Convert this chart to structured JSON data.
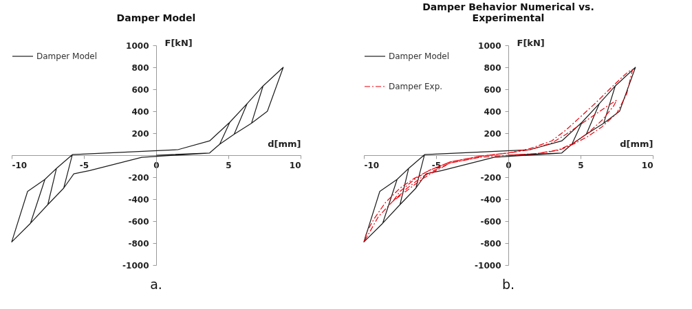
{
  "chart_data": [
    {
      "type": "line",
      "title": "Damper Model",
      "xlabel": "d[mm]",
      "ylabel": "F[kN]",
      "xlim": [
        -10,
        10
      ],
      "ylim": [
        -1000,
        1000
      ],
      "xticks": [
        -10,
        -5,
        0,
        5,
        10
      ],
      "yticks": [
        -1000,
        -800,
        -600,
        -400,
        -200,
        {
          "value": 0,
          "label": null
        },
        200,
        400,
        600,
        800,
        1000
      ],
      "legend": "top left",
      "annotations": [
        "a."
      ],
      "series": [
        {
          "name": "Damper Model",
          "color": "#1a1a1a",
          "line_style": "solid",
          "x": [
            0,
            3.7,
            4.4,
            5.1,
            3.7,
            1.5,
            -5.8,
            -6.4,
            -5.7,
            -4.6,
            -1,
            3.7,
            4.4,
            5.4,
            6.3,
            5.1,
            3.7,
            1.5,
            -5.8,
            -6.9,
            -7.5,
            -6.4,
            -5.7,
            -4.6,
            -1,
            3.7,
            4.4,
            5.4,
            6.6,
            7.4,
            6.3,
            5.1,
            3.7,
            1.5,
            -5.8,
            -6.9,
            -7.7,
            -8.7,
            -7.5,
            -6.4,
            -5.7,
            -4.6,
            -1,
            3.7,
            4.4,
            5.4,
            6.6,
            7.7,
            8.8,
            7.4,
            6.3,
            5.1,
            3.7,
            1.5,
            -5.8,
            -6.9,
            -7.7,
            -8.9,
            -10,
            -8.7,
            -7.5,
            -6.4,
            -5.7,
            -4.6,
            -1
          ],
          "values": [
            0,
            20,
            100,
            300,
            130,
            50,
            5,
            -300,
            -170,
            -140,
            -20,
            20,
            100,
            190,
            470,
            300,
            130,
            50,
            5,
            -120,
            -450,
            -300,
            -170,
            -140,
            -20,
            20,
            100,
            190,
            290,
            630,
            470,
            300,
            130,
            50,
            5,
            -120,
            -220,
            -620,
            -450,
            -300,
            -170,
            -140,
            -20,
            20,
            100,
            190,
            290,
            400,
            800,
            630,
            470,
            300,
            130,
            50,
            5,
            -120,
            -220,
            -330,
            -790,
            -620,
            -450,
            -300,
            -170,
            -140,
            -20
          ]
        }
      ]
    },
    {
      "type": "line",
      "title": "Damper Behavior Numerical vs. Experimental",
      "xlabel": "d[mm]",
      "ylabel": "F[kN]",
      "xlim": [
        -10,
        10
      ],
      "ylim": [
        -1000,
        1000
      ],
      "xticks": [
        -10,
        -5,
        0,
        5,
        10
      ],
      "yticks": [
        -1000,
        -800,
        -600,
        -400,
        -200,
        {
          "value": 0,
          "label": null
        },
        200,
        400,
        600,
        800,
        1000
      ],
      "legend": "top left",
      "annotations": [
        "b."
      ],
      "series": [
        {
          "name": "Damper Model",
          "color": "#1a1a1a",
          "line_style": "solid",
          "x": [
            0,
            3.7,
            4.4,
            5.1,
            3.7,
            1.5,
            -5.8,
            -6.4,
            -5.7,
            -4.6,
            -1,
            3.7,
            4.4,
            5.4,
            6.3,
            5.1,
            3.7,
            1.5,
            -5.8,
            -6.9,
            -7.5,
            -6.4,
            -5.7,
            -4.6,
            -1,
            3.7,
            4.4,
            5.4,
            6.6,
            7.4,
            6.3,
            5.1,
            3.7,
            1.5,
            -5.8,
            -6.9,
            -7.7,
            -8.7,
            -7.5,
            -6.4,
            -5.7,
            -4.6,
            -1,
            3.7,
            4.4,
            5.4,
            6.6,
            7.7,
            8.8,
            7.4,
            6.3,
            5.1,
            3.7,
            1.5,
            -5.8,
            -6.9,
            -7.7,
            -8.9,
            -10,
            -8.7,
            -7.5,
            -6.4,
            -5.7,
            -4.6,
            -1
          ],
          "values": [
            0,
            20,
            100,
            300,
            130,
            50,
            5,
            -300,
            -170,
            -140,
            -20,
            20,
            100,
            190,
            470,
            300,
            130,
            50,
            5,
            -120,
            -450,
            -300,
            -170,
            -140,
            -20,
            20,
            100,
            190,
            290,
            630,
            470,
            300,
            130,
            50,
            5,
            -120,
            -220,
            -620,
            -450,
            -300,
            -170,
            -140,
            -20,
            20,
            100,
            190,
            290,
            400,
            800,
            630,
            470,
            300,
            130,
            50,
            5,
            -120,
            -220,
            -330,
            -790,
            -620,
            -450,
            -300,
            -170,
            -140,
            -20
          ]
        },
        {
          "name": "Damper Exp.",
          "color": "#e8000b",
          "line_style": "dashed",
          "x": [
            0,
            2,
            3.5,
            4.5,
            5.5,
            6.5,
            7.3,
            7.5,
            7,
            6,
            5,
            4,
            3,
            1.5,
            0,
            -2,
            -4,
            -5.5,
            -6.5,
            -7.5,
            -8,
            -7.6,
            -6.8,
            -6,
            -5,
            -4,
            -2,
            0,
            2,
            3.5,
            4.5,
            5.5,
            6.5,
            7.5,
            8.2,
            8.6,
            8.3,
            7.8,
            7,
            6,
            5,
            4,
            3,
            1.5,
            0,
            -2,
            -4,
            -5.5,
            -6.5,
            -7.5,
            -8.5,
            -9.3,
            -9.8,
            -10,
            -9.6,
            -9,
            -8,
            -7,
            -6,
            -5,
            -4,
            -2
          ],
          "values": [
            0,
            15,
            50,
            110,
            200,
            320,
            450,
            500,
            460,
            370,
            280,
            190,
            110,
            50,
            20,
            -10,
            -60,
            -140,
            -220,
            -330,
            -420,
            -380,
            -300,
            -220,
            -140,
            -70,
            -20,
            0,
            15,
            45,
            100,
            170,
            260,
            380,
            560,
            780,
            760,
            700,
            600,
            470,
            350,
            230,
            130,
            60,
            20,
            -10,
            -60,
            -140,
            -210,
            -300,
            -430,
            -580,
            -700,
            -790,
            -700,
            -560,
            -420,
            -300,
            -200,
            -130,
            -70,
            -20
          ]
        }
      ]
    }
  ]
}
